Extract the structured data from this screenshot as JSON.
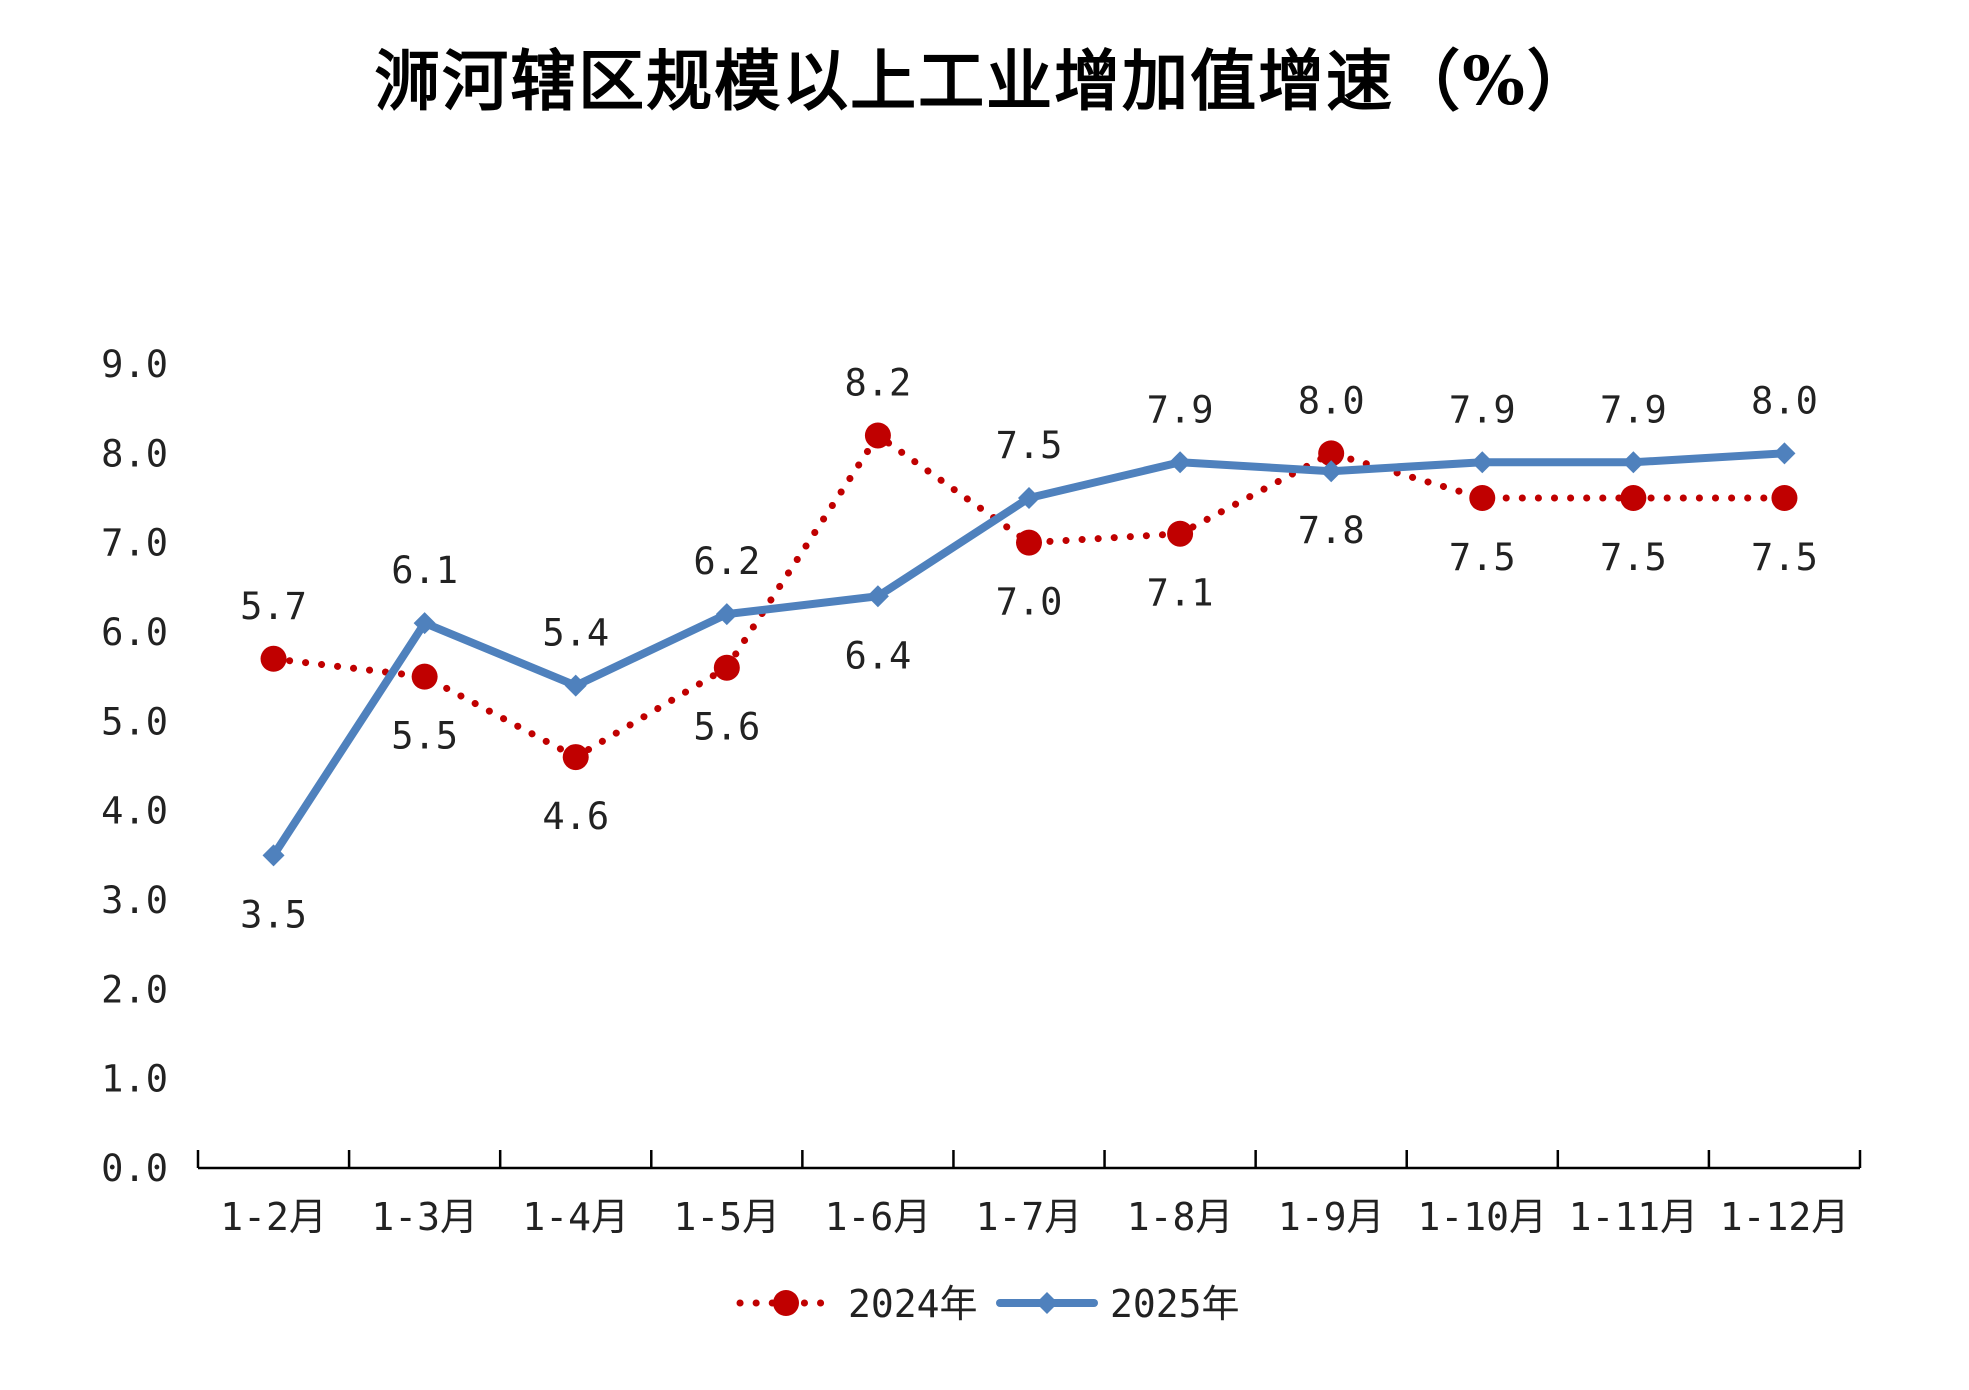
{
  "chart_data": {
    "type": "line",
    "title": "浉河辖区规模以上工业增加值增速（%）",
    "categories": [
      "1-2月",
      "1-3月",
      "1-4月",
      "1-5月",
      "1-6月",
      "1-7月",
      "1-8月",
      "1-9月",
      "1-10月",
      "1-11月",
      "1-12月"
    ],
    "ylim": [
      0.0,
      9.0
    ],
    "y_ticks": [
      "0.0",
      "1.0",
      "2.0",
      "3.0",
      "4.0",
      "5.0",
      "6.0",
      "7.0",
      "8.0",
      "9.0"
    ],
    "grid": false,
    "legend_position": "bottom",
    "series": [
      {
        "name": "2024年",
        "style": "dotted",
        "marker": "circle",
        "color": "#C00000",
        "values": [
          5.7,
          5.5,
          4.6,
          5.6,
          8.2,
          7.0,
          7.1,
          8.0,
          7.5,
          7.5,
          7.5
        ],
        "labels": [
          "5.7",
          "5.5",
          "4.6",
          "5.6",
          "8.2",
          "7.0",
          "7.1",
          "8.0",
          "7.5",
          "7.5",
          "7.5"
        ]
      },
      {
        "name": "2025年",
        "style": "solid",
        "marker": "diamond",
        "color": "#4F81BD",
        "values": [
          3.5,
          6.1,
          5.4,
          6.2,
          6.4,
          7.5,
          7.9,
          7.8,
          7.9,
          7.9,
          8.0
        ],
        "labels": [
          "3.5",
          "6.1",
          "5.4",
          "6.2",
          "6.4",
          "7.5",
          "7.9",
          "7.8",
          "7.9",
          "7.9",
          "8.0"
        ]
      }
    ]
  }
}
